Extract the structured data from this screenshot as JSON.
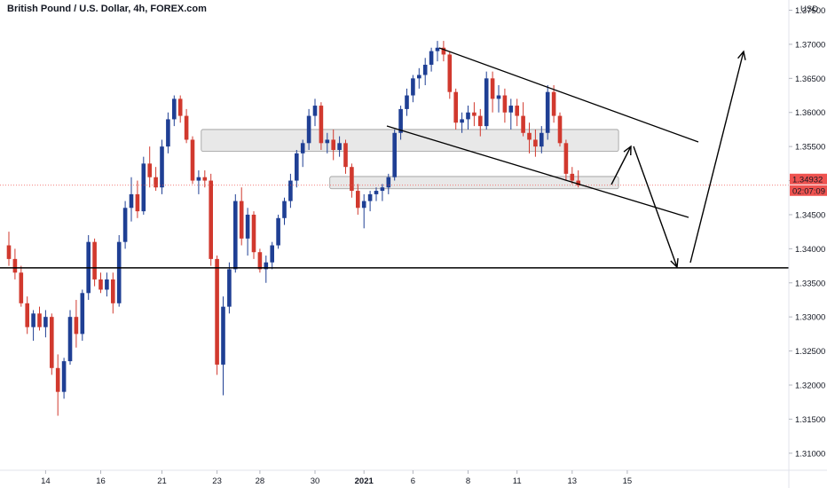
{
  "header": {
    "title": "British Pound / U.S. Dollar, 4h, FOREX.com"
  },
  "price_axis": {
    "currency_label": "USD",
    "current_price": "1.34932",
    "countdown": "02:07:09",
    "accent_color": "#ef5350",
    "countdown_color": "#ef5350"
  },
  "colors": {
    "up": "#1f3f94",
    "down": "#d1392e",
    "zone_fill": "#d6d6d6",
    "line": "#000000",
    "faded": "#b0b0b0"
  },
  "chart_data": {
    "type": "candlestick",
    "symbol": "British Pound / U.S. Dollar",
    "timeframe": "4h",
    "source": "FOREX.com",
    "y_ticks": [
      "1.37500",
      "1.37000",
      "1.36500",
      "1.36000",
      "1.35500",
      "1.35000",
      "1.34500",
      "1.34000",
      "1.33500",
      "1.33000",
      "1.32500",
      "1.32000",
      "1.31500",
      "1.31000"
    ],
    "ylim": [
      1.3075,
      1.3765
    ],
    "x_ticks": [
      {
        "label": "14",
        "index": 6
      },
      {
        "label": "16",
        "index": 15
      },
      {
        "label": "21",
        "index": 25
      },
      {
        "label": "23",
        "index": 34
      },
      {
        "label": "28",
        "index": 41
      },
      {
        "label": "30",
        "index": 50
      },
      {
        "label": "2021",
        "index": 58,
        "bold": true
      },
      {
        "label": "6",
        "index": 66
      },
      {
        "label": "8",
        "index": 75
      },
      {
        "label": "11",
        "index": 83
      },
      {
        "label": "13",
        "index": 92
      },
      {
        "label": "15",
        "index": 101
      }
    ],
    "x_count": 108,
    "candles": [
      [
        1.3405,
        1.3425,
        1.3375,
        1.3385
      ],
      [
        1.3385,
        1.34,
        1.3355,
        1.3365
      ],
      [
        1.3365,
        1.3375,
        1.3315,
        1.332
      ],
      [
        1.332,
        1.333,
        1.3275,
        1.3285
      ],
      [
        1.3285,
        1.331,
        1.3265,
        1.3305
      ],
      [
        1.3305,
        1.3315,
        1.328,
        1.3285
      ],
      [
        1.3285,
        1.331,
        1.327,
        1.33
      ],
      [
        1.33,
        1.3305,
        1.3215,
        1.3225
      ],
      [
        1.3225,
        1.3245,
        1.3155,
        1.319
      ],
      [
        1.319,
        1.324,
        1.318,
        1.3235
      ],
      [
        1.3235,
        1.331,
        1.323,
        1.33
      ],
      [
        1.33,
        1.3325,
        1.3255,
        1.3275
      ],
      [
        1.3275,
        1.334,
        1.3265,
        1.3335
      ],
      [
        1.3335,
        1.342,
        1.3325,
        1.341
      ],
      [
        1.341,
        1.3415,
        1.3345,
        1.3355
      ],
      [
        1.3355,
        1.3365,
        1.3335,
        1.334
      ],
      [
        1.334,
        1.3365,
        1.333,
        1.3355
      ],
      [
        1.3355,
        1.3365,
        1.3305,
        1.332
      ],
      [
        1.332,
        1.342,
        1.3315,
        1.341
      ],
      [
        1.341,
        1.347,
        1.34,
        1.346
      ],
      [
        1.346,
        1.3505,
        1.344,
        1.348
      ],
      [
        1.348,
        1.35,
        1.3445,
        1.3455
      ],
      [
        1.3455,
        1.3535,
        1.345,
        1.3525
      ],
      [
        1.3525,
        1.355,
        1.349,
        1.3505
      ],
      [
        1.3505,
        1.352,
        1.3485,
        1.349
      ],
      [
        1.349,
        1.356,
        1.348,
        1.355
      ],
      [
        1.355,
        1.36,
        1.354,
        1.359
      ],
      [
        1.359,
        1.3625,
        1.358,
        1.362
      ],
      [
        1.362,
        1.3625,
        1.3585,
        1.3595
      ],
      [
        1.3595,
        1.3605,
        1.3555,
        1.356
      ],
      [
        1.356,
        1.3565,
        1.3495,
        1.35
      ],
      [
        1.35,
        1.3515,
        1.348,
        1.3505
      ],
      [
        1.3505,
        1.3515,
        1.349,
        1.35
      ],
      [
        1.35,
        1.351,
        1.3375,
        1.3385
      ],
      [
        1.3385,
        1.339,
        1.3215,
        1.323
      ],
      [
        1.323,
        1.333,
        1.3185,
        1.3315
      ],
      [
        1.3315,
        1.338,
        1.3305,
        1.337
      ],
      [
        1.337,
        1.348,
        1.3365,
        1.347
      ],
      [
        1.347,
        1.349,
        1.3405,
        1.3415
      ],
      [
        1.3415,
        1.346,
        1.339,
        1.345
      ],
      [
        1.345,
        1.3455,
        1.3385,
        1.3395
      ],
      [
        1.3395,
        1.34,
        1.3365,
        1.337
      ],
      [
        1.337,
        1.339,
        1.335,
        1.338
      ],
      [
        1.338,
        1.341,
        1.337,
        1.3405
      ],
      [
        1.3405,
        1.345,
        1.34,
        1.3445
      ],
      [
        1.3445,
        1.3475,
        1.3435,
        1.347
      ],
      [
        1.347,
        1.351,
        1.346,
        1.35
      ],
      [
        1.35,
        1.3545,
        1.349,
        1.354
      ],
      [
        1.354,
        1.356,
        1.352,
        1.3555
      ],
      [
        1.3555,
        1.3605,
        1.3545,
        1.3595
      ],
      [
        1.3595,
        1.362,
        1.358,
        1.361
      ],
      [
        1.361,
        1.3615,
        1.3545,
        1.3555
      ],
      [
        1.3555,
        1.357,
        1.354,
        1.356
      ],
      [
        1.356,
        1.3575,
        1.353,
        1.3545
      ],
      [
        1.3545,
        1.3565,
        1.3535,
        1.3555
      ],
      [
        1.3555,
        1.356,
        1.351,
        1.352
      ],
      [
        1.352,
        1.3525,
        1.3475,
        1.3485
      ],
      [
        1.3485,
        1.3495,
        1.345,
        1.346
      ],
      [
        1.346,
        1.348,
        1.343,
        1.347
      ],
      [
        1.347,
        1.3485,
        1.3455,
        1.348
      ],
      [
        1.348,
        1.349,
        1.347,
        1.3485
      ],
      [
        1.3485,
        1.3495,
        1.347,
        1.349
      ],
      [
        1.349,
        1.351,
        1.348,
        1.3505
      ],
      [
        1.3505,
        1.3575,
        1.35,
        1.357
      ],
      [
        1.357,
        1.361,
        1.356,
        1.3605
      ],
      [
        1.3605,
        1.3635,
        1.3595,
        1.3625
      ],
      [
        1.3625,
        1.3655,
        1.3615,
        1.365
      ],
      [
        1.365,
        1.3665,
        1.3635,
        1.3655
      ],
      [
        1.3655,
        1.368,
        1.364,
        1.367
      ],
      [
        1.367,
        1.3695,
        1.366,
        1.369
      ],
      [
        1.369,
        1.3705,
        1.3675,
        1.3695
      ],
      [
        1.3695,
        1.3705,
        1.3675,
        1.3685
      ],
      [
        1.3685,
        1.369,
        1.362,
        1.363
      ],
      [
        1.363,
        1.3635,
        1.3575,
        1.3585
      ],
      [
        1.3585,
        1.36,
        1.357,
        1.359
      ],
      [
        1.359,
        1.361,
        1.3575,
        1.36
      ],
      [
        1.36,
        1.3615,
        1.358,
        1.3595
      ],
      [
        1.3595,
        1.3605,
        1.3565,
        1.358
      ],
      [
        1.358,
        1.366,
        1.3575,
        1.365
      ],
      [
        1.365,
        1.366,
        1.36,
        1.362
      ],
      [
        1.362,
        1.364,
        1.36,
        1.3625
      ],
      [
        1.3625,
        1.3635,
        1.3585,
        1.36
      ],
      [
        1.36,
        1.362,
        1.3575,
        1.361
      ],
      [
        1.361,
        1.362,
        1.358,
        1.3595
      ],
      [
        1.3595,
        1.3615,
        1.3565,
        1.357
      ],
      [
        1.357,
        1.3585,
        1.354,
        1.356
      ],
      [
        1.356,
        1.3575,
        1.3535,
        1.355
      ],
      [
        1.355,
        1.358,
        1.354,
        1.357
      ],
      [
        1.357,
        1.364,
        1.356,
        1.363
      ],
      [
        1.363,
        1.364,
        1.3585,
        1.3595
      ],
      [
        1.3595,
        1.36,
        1.355,
        1.3555
      ],
      [
        1.3555,
        1.356,
        1.35,
        1.351
      ],
      [
        1.351,
        1.352,
        1.3495,
        1.35
      ],
      [
        1.35,
        1.3515,
        1.349,
        1.3493
      ]
    ]
  },
  "annotations": {
    "support_level": 1.3372,
    "zones": [
      {
        "x0": 32,
        "x1": 99,
        "top": 1.3575,
        "bottom": 1.3543
      },
      {
        "x0": 53,
        "x1": 99,
        "top": 1.3506,
        "bottom": 1.3488
      }
    ]
  }
}
